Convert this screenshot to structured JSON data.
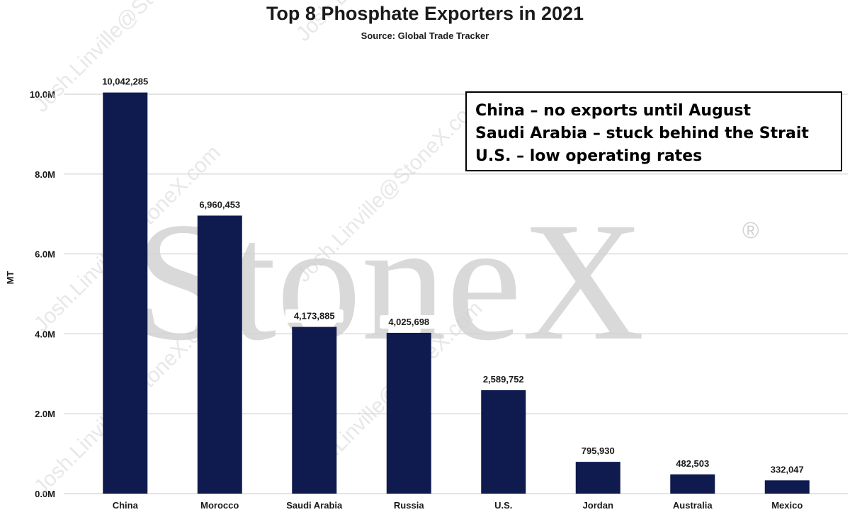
{
  "title": "Top 8 Phosphate Exporters in 2021",
  "subtitle": "Source: Global Trade Tracker",
  "annotations": [
    "China – no exports until August",
    "Saudi Arabia – stuck behind the Strait",
    "U.S. – low operating rates"
  ],
  "watermark": {
    "logo": "StoneX",
    "mark": "®",
    "text": "Josh.Linville@StoneX.com"
  },
  "colors": {
    "bar": "#0f1a4f",
    "grid": "#c8c8c8",
    "text": "#1a1a1a",
    "watermark": "#d2d2d2"
  },
  "chart_data": {
    "type": "bar",
    "title": "Top 8 Phosphate Exporters in 2021",
    "subtitle": "Source: Global Trade Tracker",
    "xlabel": "",
    "ylabel": "MT",
    "categories": [
      "China",
      "Morocco",
      "Saudi Arabia",
      "Russia",
      "U.S.",
      "Jordan",
      "Australia",
      "Mexico"
    ],
    "values": [
      10042285,
      6960453,
      4173885,
      4025698,
      2589752,
      795930,
      482503,
      332047
    ],
    "value_labels": [
      "10,042,285",
      "6,960,453",
      "4,173,885",
      "4,025,698",
      "2,589,752",
      "795,930",
      "482,503",
      "332,047"
    ],
    "ylim": [
      0,
      10000000
    ],
    "yticks": [
      0,
      2000000,
      4000000,
      6000000,
      8000000,
      10000000
    ],
    "ytick_labels": [
      "0.0M",
      "2.0M",
      "4.0M",
      "6.0M",
      "8.0M",
      "10.0M"
    ],
    "grid": true,
    "legend": "none"
  }
}
